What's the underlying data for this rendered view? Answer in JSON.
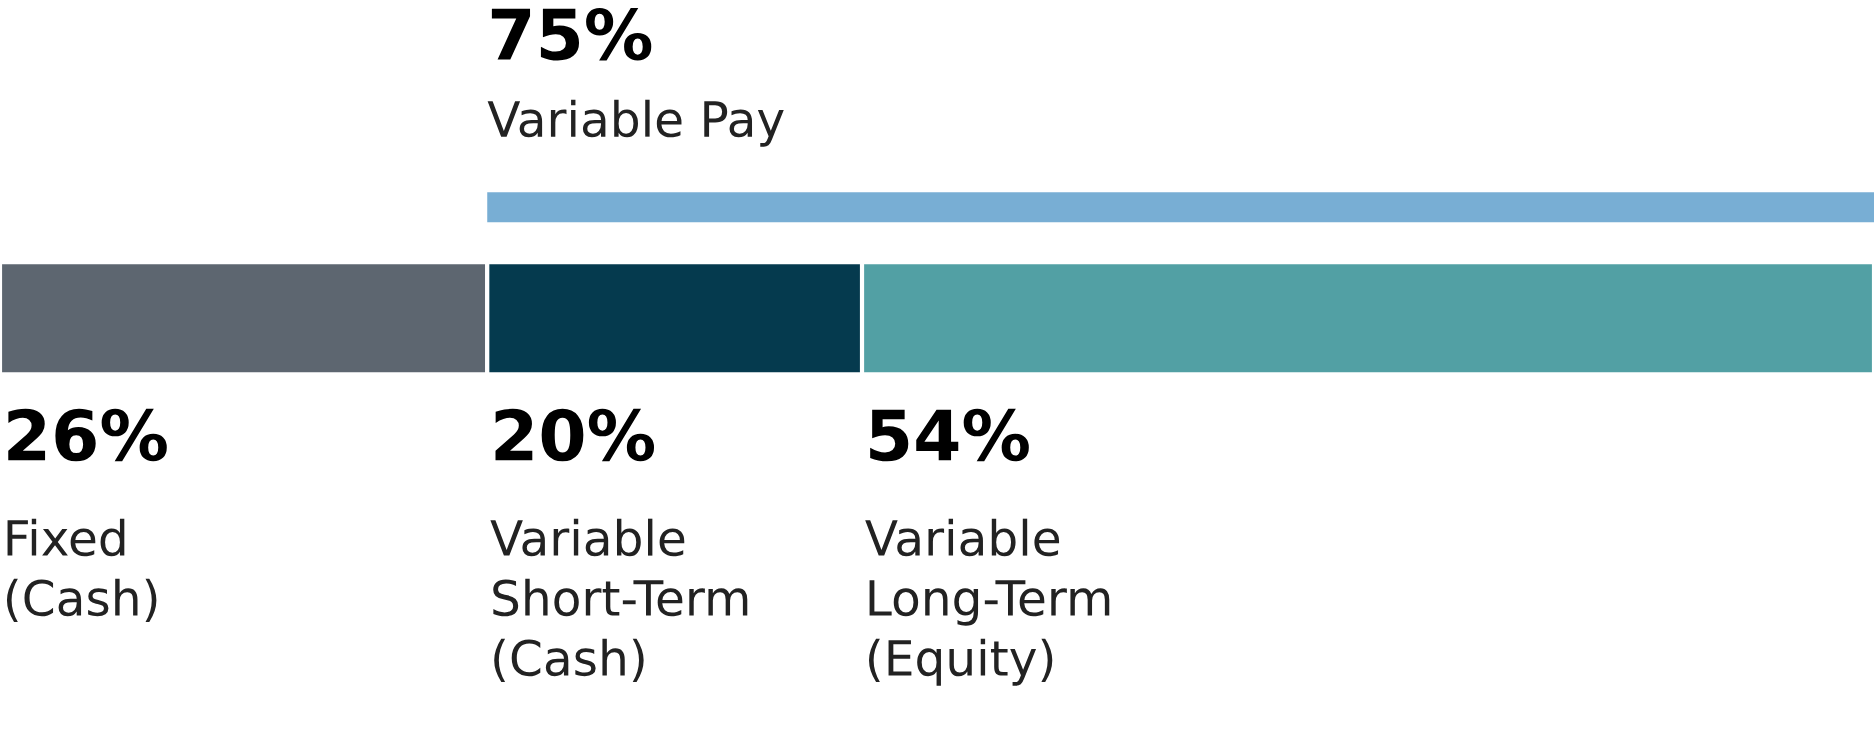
{
  "chart_data": {
    "type": "bar",
    "orientation": "horizontal",
    "stacked": true,
    "categories": [
      null
    ],
    "series": [
      {
        "name": "Fixed\n(Cash)",
        "color": "#5d6670",
        "values": [
          26
        ],
        "value_labels": [
          "26%"
        ]
      },
      {
        "name": "Variable\nShort-Term\n(Cash)",
        "color": "#053a4e",
        "values": [
          20
        ],
        "value_labels": [
          "20%"
        ]
      },
      {
        "name": "Variable\nLong-Term\n(Equity)",
        "color": "#52a0a4",
        "values": [
          54
        ],
        "value_labels": [
          "54%"
        ]
      }
    ],
    "annotations": [
      "75%\nVariable Pay"
    ]
  }
}
